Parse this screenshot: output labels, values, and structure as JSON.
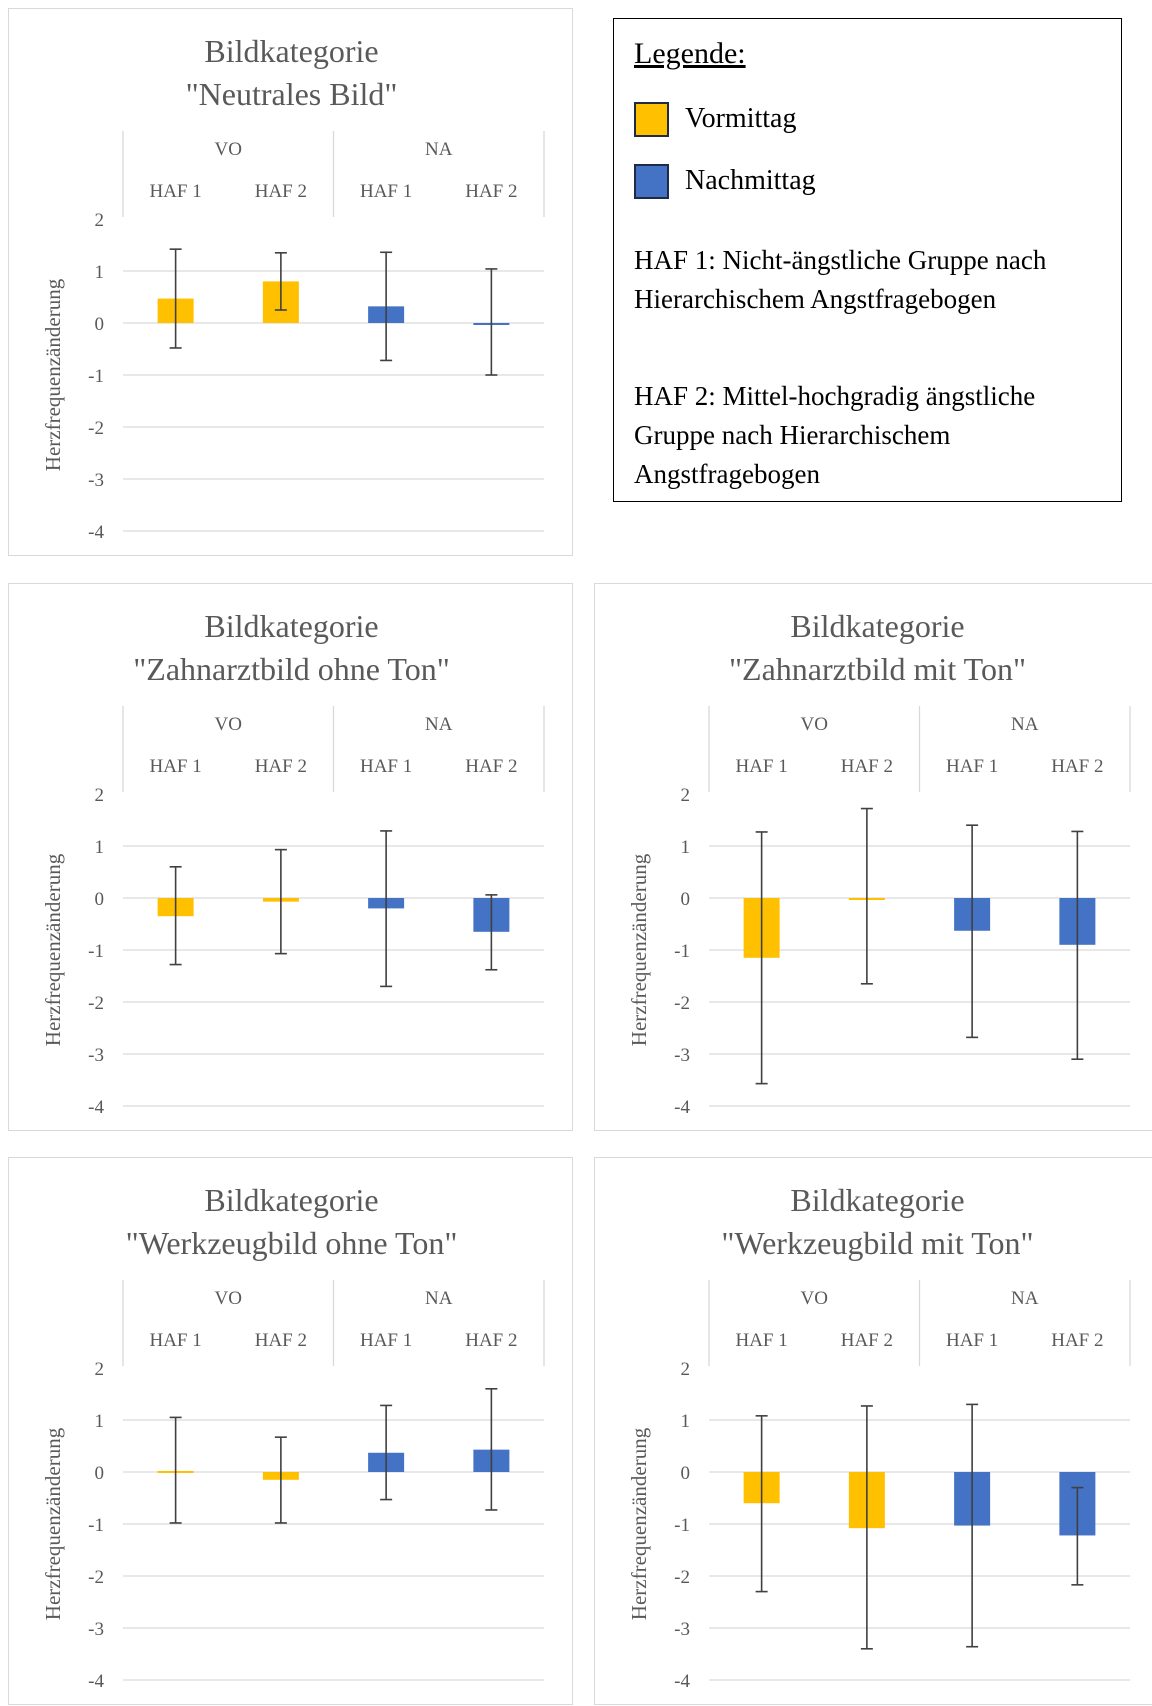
{
  "colors": {
    "vormittag": "#ffc000",
    "nachmittag": "#4472c4",
    "grid": "#d9d9d9",
    "error": "#404040"
  },
  "legend": {
    "title": "Legende:",
    "items": [
      {
        "label": "Vormittag",
        "color": "#ffc000"
      },
      {
        "label": "Nachmittag",
        "color": "#4472c4"
      }
    ],
    "note1": "HAF 1: Nicht-ängstliche Gruppe nach Hierarchischem Angstfragebogen",
    "note2": "HAF 2: Mittel-hochgradig ängstliche Gruppe nach Hierarchischem Angstfragebogen"
  },
  "chart_data": [
    {
      "type": "bar",
      "title": "Bildkategorie",
      "subtitle": "\"Neutrales Bild\"",
      "ylabel": "Herzfrequenzänderung",
      "ylim": [
        -4,
        2
      ],
      "yticks": [
        2,
        1,
        0,
        -1,
        -2,
        -3,
        -4
      ],
      "groups": [
        "VO",
        "NA"
      ],
      "categories": [
        "HAF 1",
        "HAF 2",
        "HAF 1",
        "HAF 2"
      ],
      "values": [
        0.47,
        0.8,
        0.32,
        0.0
      ],
      "error_low": [
        -0.48,
        0.25,
        -0.72,
        -1.0
      ],
      "error_high": [
        1.42,
        1.35,
        1.36,
        1.04
      ],
      "grid": true
    },
    {
      "type": "bar",
      "title": "Bildkategorie",
      "subtitle": "\"Zahnarztbild ohne Ton\"",
      "ylabel": "Herzfrequenzänderung",
      "ylim": [
        -4,
        2
      ],
      "yticks": [
        2,
        1,
        0,
        -1,
        -2,
        -3,
        -4
      ],
      "groups": [
        "VO",
        "NA"
      ],
      "categories": [
        "HAF 1",
        "HAF 2",
        "HAF 1",
        "HAF 2"
      ],
      "values": [
        -0.35,
        -0.07,
        -0.2,
        -0.65
      ],
      "error_low": [
        -1.28,
        -1.07,
        -1.7,
        -1.38
      ],
      "error_high": [
        0.6,
        0.93,
        1.29,
        0.06
      ],
      "grid": true
    },
    {
      "type": "bar",
      "title": "Bildkategorie",
      "subtitle": "\"Zahnarztbild mit Ton\"",
      "ylabel": "Herzfrequenzänderung",
      "ylim": [
        -4,
        2
      ],
      "yticks": [
        2,
        1,
        0,
        -1,
        -2,
        -3,
        -4
      ],
      "groups": [
        "VO",
        "NA"
      ],
      "categories": [
        "HAF 1",
        "HAF 2",
        "HAF 1",
        "HAF 2"
      ],
      "values": [
        -1.15,
        0.0,
        -0.63,
        -0.9
      ],
      "error_low": [
        -3.57,
        -1.65,
        -2.68,
        -3.1
      ],
      "error_high": [
        1.27,
        1.72,
        1.4,
        1.28
      ],
      "grid": true
    },
    {
      "type": "bar",
      "title": "Bildkategorie",
      "subtitle": "\"Werkzeugbild ohne Ton\"",
      "ylabel": "Herzfrequenzänderung",
      "ylim": [
        -4,
        2
      ],
      "yticks": [
        2,
        1,
        0,
        -1,
        -2,
        -3,
        -4
      ],
      "groups": [
        "VO",
        "NA"
      ],
      "categories": [
        "HAF 1",
        "HAF 2",
        "HAF 1",
        "HAF 2"
      ],
      "values": [
        0.02,
        -0.15,
        0.37,
        0.43
      ],
      "error_low": [
        -0.98,
        -0.98,
        -0.53,
        -0.73
      ],
      "error_high": [
        1.05,
        0.67,
        1.28,
        1.6
      ],
      "grid": true
    },
    {
      "type": "bar",
      "title": "Bildkategorie",
      "subtitle": "\"Werkzeugbild mit Ton\"",
      "ylabel": "Herzfrequenzänderung",
      "ylim": [
        -4,
        2
      ],
      "yticks": [
        2,
        1,
        0,
        -1,
        -2,
        -3,
        -4
      ],
      "groups": [
        "VO",
        "NA"
      ],
      "categories": [
        "HAF 1",
        "HAF 2",
        "HAF 1",
        "HAF 2"
      ],
      "values": [
        -0.6,
        -1.08,
        -1.03,
        -1.22
      ],
      "error_low": [
        -2.3,
        -3.4,
        -3.36,
        -2.17
      ],
      "error_high": [
        1.08,
        1.27,
        1.3,
        -0.3
      ],
      "grid": true
    }
  ]
}
